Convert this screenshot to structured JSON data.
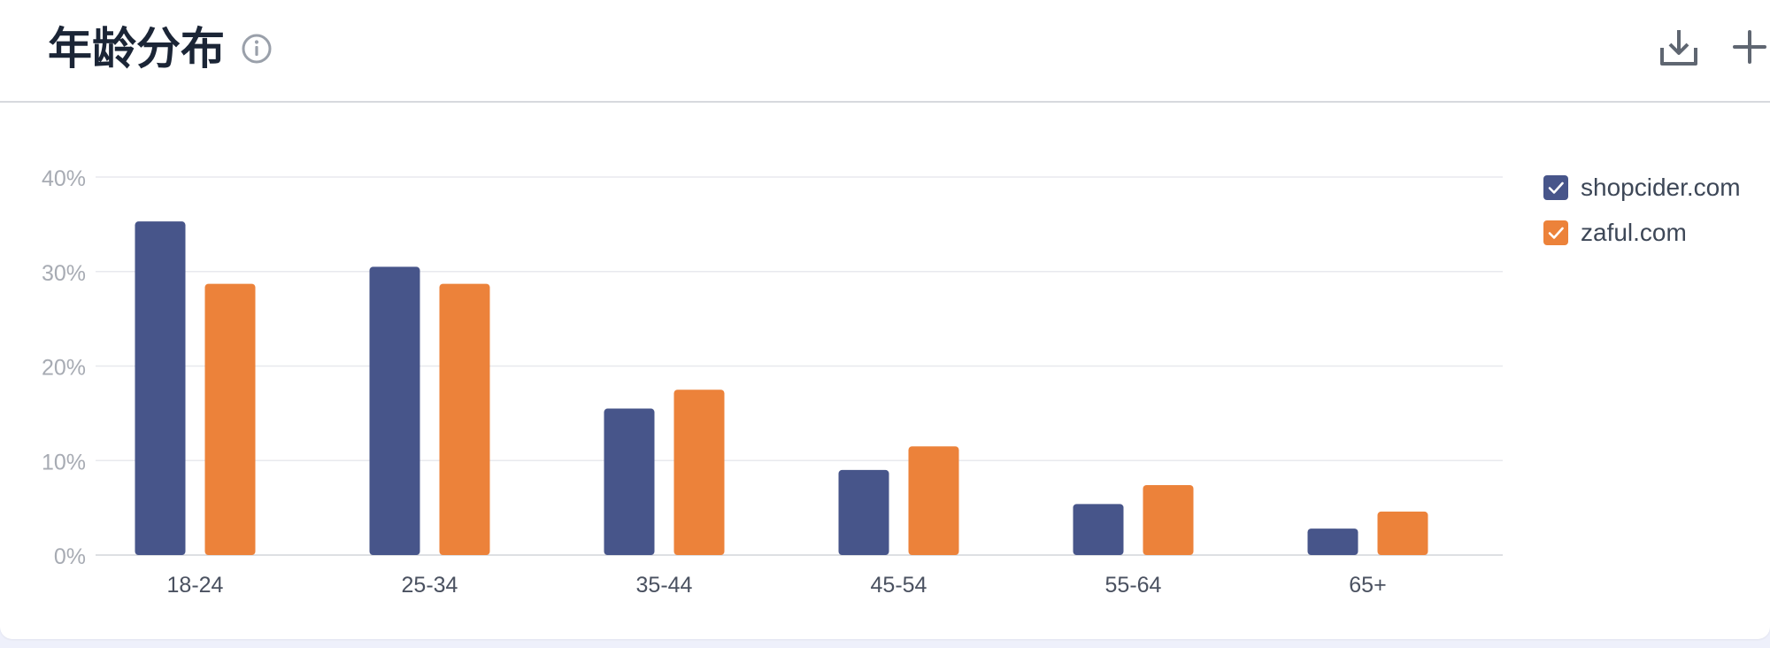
{
  "header": {
    "title": "年龄分布",
    "icons": [
      "info-icon",
      "download-icon",
      "plus-icon"
    ]
  },
  "colors": {
    "series1": "#47558a",
    "series2": "#ec823a",
    "grid": "#e8e9ee",
    "axis_text": "#a7abb3",
    "category_text": "#4a5160"
  },
  "chart_data": {
    "type": "bar",
    "title": "年龄分布",
    "categories": [
      "18-24",
      "25-34",
      "35-44",
      "45-54",
      "55-64",
      "65+"
    ],
    "series": [
      {
        "name": "shopcider.com",
        "values": [
          35.3,
          30.5,
          15.5,
          9.0,
          5.4,
          2.8
        ]
      },
      {
        "name": "zaful.com",
        "values": [
          28.7,
          28.7,
          17.5,
          11.5,
          7.4,
          4.6
        ]
      }
    ],
    "ylim": [
      0,
      40
    ],
    "yticks": [
      "0%",
      "10%",
      "20%",
      "30%",
      "40%"
    ],
    "xlabel": "",
    "ylabel": "",
    "grid": true,
    "legend_position": "right"
  }
}
